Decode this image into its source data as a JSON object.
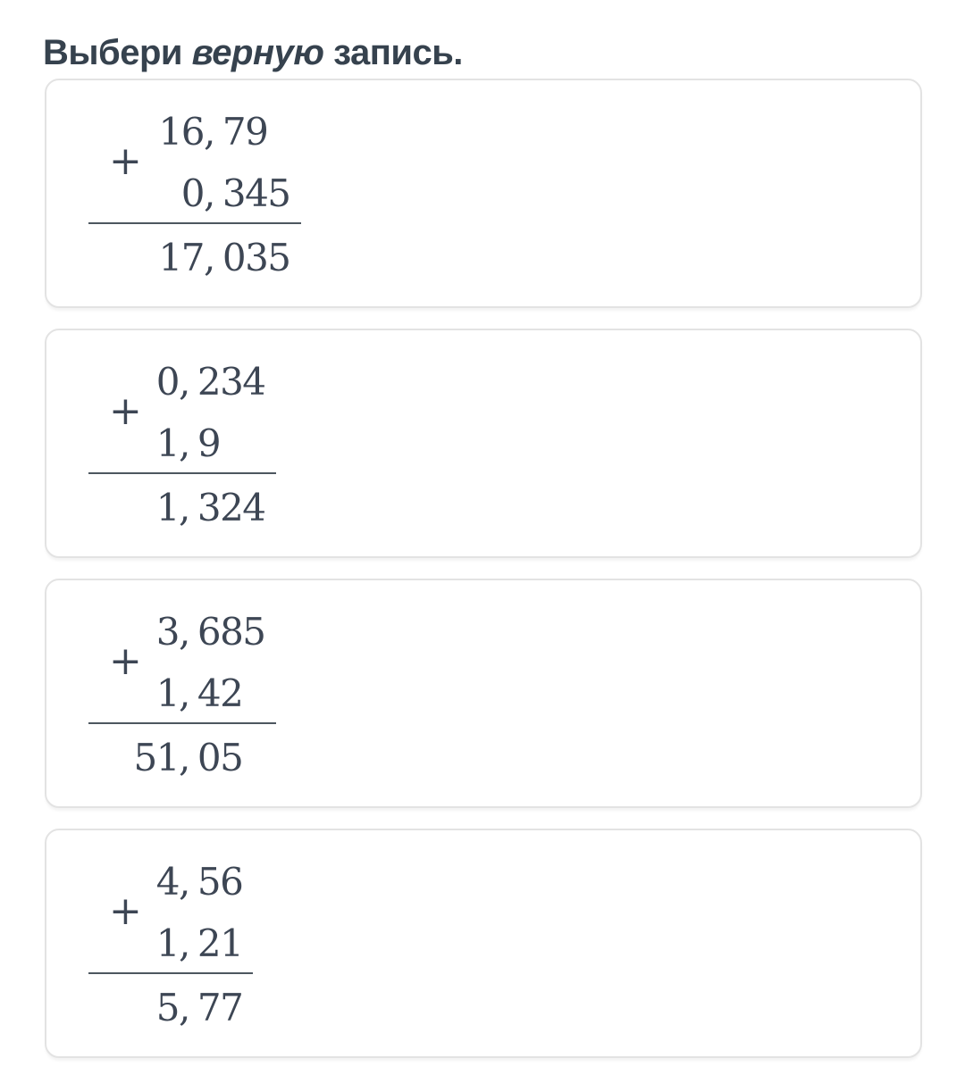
{
  "page": {
    "title": {
      "prefix": "Выбери ",
      "emphasis": "верную",
      "suffix": " запись."
    },
    "decimal_comma": ","
  },
  "colors": {
    "background": "#ffffff",
    "text": "#3d4654",
    "title_text": "#36424e",
    "card_border": "#e3e3e3",
    "rule": "#4d565f"
  },
  "options": [
    {
      "operator": "+",
      "addend1": {
        "int": "16",
        "dec": "79"
      },
      "addend2": {
        "int": "0",
        "dec": "345"
      },
      "sum": {
        "int": "17",
        "dec": "035"
      }
    },
    {
      "operator": "+",
      "addend1": {
        "int": "0",
        "dec": "234"
      },
      "addend2": {
        "int": "1",
        "dec": "9"
      },
      "sum": {
        "int": "1",
        "dec": "324"
      }
    },
    {
      "operator": "+",
      "addend1": {
        "int": "3",
        "dec": "685"
      },
      "addend2": {
        "int": "1",
        "dec": "42"
      },
      "sum": {
        "int": "51",
        "dec": "05"
      }
    },
    {
      "operator": "+",
      "addend1": {
        "int": "4",
        "dec": "56"
      },
      "addend2": {
        "int": "1",
        "dec": "21"
      },
      "sum": {
        "int": "5",
        "dec": "77"
      }
    }
  ]
}
